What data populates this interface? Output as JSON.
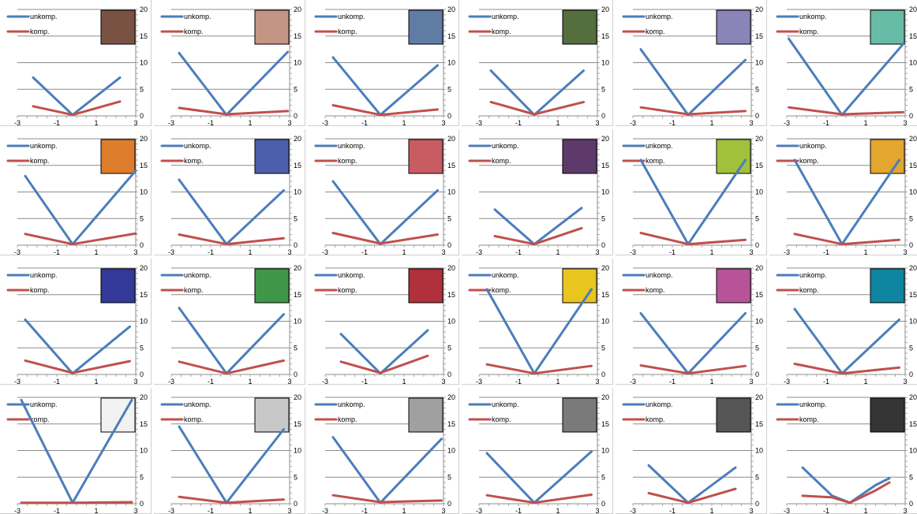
{
  "legend": {
    "unkomp": "unkomp.",
    "komp": "komp."
  },
  "series_colors": {
    "unkomp": "#4a7ebb",
    "komp": "#c0504d"
  },
  "chart_data": [
    {
      "type": "line",
      "swatch": "#7a5243",
      "x": [
        -2.2,
        -0.2,
        2.2
      ],
      "series": [
        {
          "name": "unkomp.",
          "values": [
            7.2,
            0.2,
            7.2
          ]
        },
        {
          "name": "komp.",
          "values": [
            1.8,
            0.2,
            2.7
          ]
        }
      ],
      "xlim": [
        -3,
        3
      ],
      "ylim": [
        0,
        20
      ],
      "xticks": [
        -3,
        -1,
        1,
        3
      ],
      "yticks": [
        0,
        5,
        10,
        15,
        20
      ]
    },
    {
      "type": "line",
      "swatch": "#c49484",
      "x": [
        -2.6,
        -0.2,
        2.9
      ],
      "series": [
        {
          "name": "unkomp.",
          "values": [
            11.8,
            0.2,
            12
          ]
        },
        {
          "name": "komp.",
          "values": [
            1.5,
            0.3,
            0.9
          ]
        }
      ],
      "xlim": [
        -3,
        3
      ],
      "ylim": [
        0,
        20
      ],
      "xticks": [
        -3,
        -1,
        1,
        3
      ],
      "yticks": [
        0,
        5,
        10,
        15,
        20
      ]
    },
    {
      "type": "line",
      "swatch": "#5f7ca5",
      "x": [
        -2.6,
        -0.2,
        2.7
      ],
      "series": [
        {
          "name": "unkomp.",
          "values": [
            11,
            0.2,
            9.5
          ]
        },
        {
          "name": "komp.",
          "values": [
            2,
            0.2,
            1.2
          ]
        }
      ],
      "xlim": [
        -3,
        3
      ],
      "ylim": [
        0,
        20
      ],
      "xticks": [
        -3,
        -1,
        1,
        3
      ],
      "yticks": [
        0,
        5,
        10,
        15,
        20
      ]
    },
    {
      "type": "line",
      "swatch": "#546e3e",
      "x": [
        -2.4,
        -0.2,
        2.3
      ],
      "series": [
        {
          "name": "unkomp.",
          "values": [
            8.5,
            0.2,
            8.5
          ]
        },
        {
          "name": "komp.",
          "values": [
            2.6,
            0.3,
            2.6
          ]
        }
      ],
      "xlim": [
        -3,
        3
      ],
      "ylim": [
        0,
        20
      ],
      "xticks": [
        -3,
        -1,
        1,
        3
      ],
      "yticks": [
        0,
        5,
        10,
        15,
        20
      ]
    },
    {
      "type": "line",
      "swatch": "#8985b9",
      "x": [
        -2.6,
        -0.2,
        2.7
      ],
      "series": [
        {
          "name": "unkomp.",
          "values": [
            12.5,
            0.2,
            10.5
          ]
        },
        {
          "name": "komp.",
          "values": [
            1.6,
            0.3,
            0.9
          ]
        }
      ],
      "xlim": [
        -3,
        3
      ],
      "ylim": [
        0,
        20
      ],
      "xticks": [
        -3,
        -1,
        1,
        3
      ],
      "yticks": [
        0,
        5,
        10,
        15,
        20
      ]
    },
    {
      "type": "line",
      "swatch": "#67bca8",
      "x": [
        -2.9,
        -0.2,
        2.9
      ],
      "series": [
        {
          "name": "unkomp.",
          "values": [
            14.5,
            0.2,
            13.5
          ]
        },
        {
          "name": "komp.",
          "values": [
            1.6,
            0.3,
            0.7
          ]
        }
      ],
      "xlim": [
        -3,
        3
      ],
      "ylim": [
        0,
        20
      ],
      "xticks": [
        -3,
        -1,
        1,
        3
      ],
      "yticks": [
        0,
        5,
        10,
        15,
        20
      ]
    },
    {
      "type": "line",
      "swatch": "#dd7d2b",
      "x": [
        -2.6,
        -0.2,
        3
      ],
      "series": [
        {
          "name": "unkomp.",
          "values": [
            13,
            0.2,
            14
          ]
        },
        {
          "name": "komp.",
          "values": [
            2.1,
            0.2,
            2.2
          ]
        }
      ],
      "xlim": [
        -3,
        3
      ],
      "ylim": [
        0,
        20
      ],
      "xticks": [
        -3,
        -1,
        1,
        3
      ],
      "yticks": [
        0,
        5,
        10,
        15,
        20
      ]
    },
    {
      "type": "line",
      "swatch": "#4c5fac",
      "x": [
        -2.6,
        -0.2,
        2.7
      ],
      "series": [
        {
          "name": "unkomp.",
          "values": [
            12.3,
            0.2,
            10.3
          ]
        },
        {
          "name": "komp.",
          "values": [
            2,
            0.2,
            1.3
          ]
        }
      ],
      "xlim": [
        -3,
        3
      ],
      "ylim": [
        0,
        20
      ],
      "xticks": [
        -3,
        -1,
        1,
        3
      ],
      "yticks": [
        0,
        5,
        10,
        15,
        20
      ]
    },
    {
      "type": "line",
      "swatch": "#c95c62",
      "x": [
        -2.6,
        -0.2,
        2.7
      ],
      "series": [
        {
          "name": "unkomp.",
          "values": [
            12,
            0.2,
            10.3
          ]
        },
        {
          "name": "komp.",
          "values": [
            2.3,
            0.3,
            2
          ]
        }
      ],
      "xlim": [
        -3,
        3
      ],
      "ylim": [
        0,
        20
      ],
      "xticks": [
        -3,
        -1,
        1,
        3
      ],
      "yticks": [
        0,
        5,
        10,
        15,
        20
      ]
    },
    {
      "type": "line",
      "swatch": "#5e3a6b",
      "x": [
        -2.2,
        -0.2,
        2.2
      ],
      "series": [
        {
          "name": "unkomp.",
          "values": [
            6.7,
            0.2,
            7
          ]
        },
        {
          "name": "komp.",
          "values": [
            1.7,
            0.2,
            3.2
          ]
        }
      ],
      "xlim": [
        -3,
        3
      ],
      "ylim": [
        0,
        20
      ],
      "xticks": [
        -3,
        -1,
        1,
        3
      ],
      "yticks": [
        0,
        5,
        10,
        15,
        20
      ]
    },
    {
      "type": "line",
      "swatch": "#a1c13d",
      "x": [
        -2.6,
        -0.2,
        2.7
      ],
      "series": [
        {
          "name": "unkomp.",
          "values": [
            16,
            0.2,
            16
          ]
        },
        {
          "name": "komp.",
          "values": [
            2.3,
            0.2,
            1
          ]
        }
      ],
      "xlim": [
        -3,
        3
      ],
      "ylim": [
        0,
        20
      ],
      "xticks": [
        -3,
        -1,
        1,
        3
      ],
      "yticks": [
        0,
        5,
        10,
        15,
        20
      ]
    },
    {
      "type": "line",
      "swatch": "#e3a62f",
      "x": [
        -2.6,
        -0.2,
        2.7
      ],
      "series": [
        {
          "name": "unkomp.",
          "values": [
            16,
            0.2,
            16
          ]
        },
        {
          "name": "komp.",
          "values": [
            2.1,
            0.2,
            1
          ]
        }
      ],
      "xlim": [
        -3,
        3
      ],
      "ylim": [
        0,
        20
      ],
      "xticks": [
        -3,
        -1,
        1,
        3
      ],
      "yticks": [
        0,
        5,
        10,
        15,
        20
      ]
    },
    {
      "type": "line",
      "swatch": "#333999",
      "x": [
        -2.6,
        -0.2,
        2.7
      ],
      "series": [
        {
          "name": "unkomp.",
          "values": [
            10.3,
            0.2,
            9
          ]
        },
        {
          "name": "komp.",
          "values": [
            2.6,
            0.3,
            2.5
          ]
        }
      ],
      "xlim": [
        -3,
        3
      ],
      "ylim": [
        0,
        20
      ],
      "xticks": [
        -3,
        -1,
        1,
        3
      ],
      "yticks": [
        0,
        5,
        10,
        15,
        20
      ]
    },
    {
      "type": "line",
      "swatch": "#3f9548",
      "x": [
        -2.6,
        -0.2,
        2.7
      ],
      "series": [
        {
          "name": "unkomp.",
          "values": [
            12.5,
            0.2,
            11.3
          ]
        },
        {
          "name": "komp.",
          "values": [
            2.4,
            0.2,
            2.6
          ]
        }
      ],
      "xlim": [
        -3,
        3
      ],
      "ylim": [
        0,
        20
      ],
      "xticks": [
        -3,
        -1,
        1,
        3
      ],
      "yticks": [
        0,
        5,
        10,
        15,
        20
      ]
    },
    {
      "type": "line",
      "swatch": "#b0313b",
      "x": [
        -2.2,
        -0.2,
        2.2
      ],
      "series": [
        {
          "name": "unkomp.",
          "values": [
            7.6,
            0.2,
            8.3
          ]
        },
        {
          "name": "komp.",
          "values": [
            2.4,
            0.3,
            3.5
          ]
        }
      ],
      "xlim": [
        -3,
        3
      ],
      "ylim": [
        0,
        20
      ],
      "xticks": [
        -3,
        -1,
        1,
        3
      ],
      "yticks": [
        0,
        5,
        10,
        15,
        20
      ]
    },
    {
      "type": "line",
      "swatch": "#e8c61e",
      "x": [
        -2.6,
        -0.2,
        2.7
      ],
      "series": [
        {
          "name": "unkomp.",
          "values": [
            16,
            0.2,
            16
          ]
        },
        {
          "name": "komp.",
          "values": [
            1.9,
            0.2,
            1.6
          ]
        }
      ],
      "xlim": [
        -3,
        3
      ],
      "ylim": [
        0,
        20
      ],
      "xticks": [
        -3,
        -1,
        1,
        3
      ],
      "yticks": [
        0,
        5,
        10,
        15,
        20
      ]
    },
    {
      "type": "line",
      "swatch": "#b8539a",
      "x": [
        -2.6,
        -0.2,
        2.7
      ],
      "series": [
        {
          "name": "unkomp.",
          "values": [
            11.5,
            0.2,
            11.5
          ]
        },
        {
          "name": "komp.",
          "values": [
            1.7,
            0.2,
            1.6
          ]
        }
      ],
      "xlim": [
        -3,
        3
      ],
      "ylim": [
        0,
        20
      ],
      "xticks": [
        -3,
        -1,
        1,
        3
      ],
      "yticks": [
        0,
        5,
        10,
        15,
        20
      ]
    },
    {
      "type": "line",
      "swatch": "#0f85a1",
      "x": [
        -2.6,
        -0.2,
        2.7
      ],
      "series": [
        {
          "name": "unkomp.",
          "values": [
            12.3,
            0.2,
            10.3
          ]
        },
        {
          "name": "komp.",
          "values": [
            2,
            0.2,
            1.3
          ]
        }
      ],
      "xlim": [
        -3,
        3
      ],
      "ylim": [
        0,
        20
      ],
      "xticks": [
        -3,
        -1,
        1,
        3
      ],
      "yticks": [
        0,
        5,
        10,
        15,
        20
      ]
    },
    {
      "type": "line",
      "swatch": "#f2f2f0",
      "x": [
        -2.8,
        -0.2,
        2.8
      ],
      "series": [
        {
          "name": "unkomp.",
          "values": [
            19.5,
            0.2,
            19.5
          ]
        },
        {
          "name": "komp.",
          "values": [
            0.2,
            0.2,
            0.3
          ]
        }
      ],
      "xlim": [
        -3,
        3
      ],
      "ylim": [
        0,
        20
      ],
      "xticks": [
        -3,
        -1,
        1,
        3
      ],
      "yticks": [
        0,
        5,
        10,
        15,
        20
      ]
    },
    {
      "type": "line",
      "swatch": "#c8c8c8",
      "x": [
        -2.6,
        -0.2,
        2.7
      ],
      "series": [
        {
          "name": "unkomp.",
          "values": [
            14.5,
            0.2,
            14
          ]
        },
        {
          "name": "komp.",
          "values": [
            1.3,
            0.2,
            0.8
          ]
        }
      ],
      "xlim": [
        -3,
        3
      ],
      "ylim": [
        0,
        20
      ],
      "xticks": [
        -3,
        -1,
        1,
        3
      ],
      "yticks": [
        0,
        5,
        10,
        15,
        20
      ]
    },
    {
      "type": "line",
      "swatch": "#a0a0a0",
      "x": [
        -2.6,
        -0.2,
        2.9
      ],
      "series": [
        {
          "name": "unkomp.",
          "values": [
            12.5,
            0.2,
            12.2
          ]
        },
        {
          "name": "komp.",
          "values": [
            1.6,
            0.3,
            0.6
          ]
        }
      ],
      "xlim": [
        -3,
        3
      ],
      "ylim": [
        0,
        20
      ],
      "xticks": [
        -3,
        -1,
        1,
        3
      ],
      "yticks": [
        0,
        5,
        10,
        15,
        20
      ]
    },
    {
      "type": "line",
      "swatch": "#7a7a7a",
      "x": [
        -2.6,
        -0.2,
        2.7
      ],
      "series": [
        {
          "name": "unkomp.",
          "values": [
            9.5,
            0.2,
            9.8
          ]
        },
        {
          "name": "komp.",
          "values": [
            1.6,
            0.2,
            1.7
          ]
        }
      ],
      "xlim": [
        -3,
        3
      ],
      "ylim": [
        0,
        20
      ],
      "xticks": [
        -3,
        -1,
        1,
        3
      ],
      "yticks": [
        0,
        5,
        10,
        15,
        20
      ]
    },
    {
      "type": "line",
      "swatch": "#565656",
      "x": [
        -2.2,
        -0.2,
        2.2
      ],
      "series": [
        {
          "name": "unkomp.",
          "values": [
            7.2,
            0.2,
            6.8
          ]
        },
        {
          "name": "komp.",
          "values": [
            2,
            0.2,
            2.8
          ]
        }
      ],
      "xlim": [
        -3,
        3
      ],
      "ylim": [
        0,
        20
      ],
      "xticks": [
        -3,
        -1,
        1,
        3
      ],
      "yticks": [
        0,
        5,
        10,
        15,
        20
      ]
    },
    {
      "type": "line",
      "swatch": "#353535",
      "x": [
        -2.2,
        -0.7,
        0.2,
        1.5,
        2.2
      ],
      "series": [
        {
          "name": "unkomp.",
          "values": [
            6.8,
            1.5,
            0.2,
            3.5,
            4.8
          ]
        },
        {
          "name": "komp.",
          "values": [
            1.5,
            1.2,
            0.2,
            2.5,
            4
          ]
        }
      ],
      "xlim": [
        -3,
        3
      ],
      "ylim": [
        0,
        20
      ],
      "xticks": [
        -3,
        -1,
        1,
        3
      ],
      "yticks": [
        0,
        5,
        10,
        15,
        20
      ]
    }
  ]
}
